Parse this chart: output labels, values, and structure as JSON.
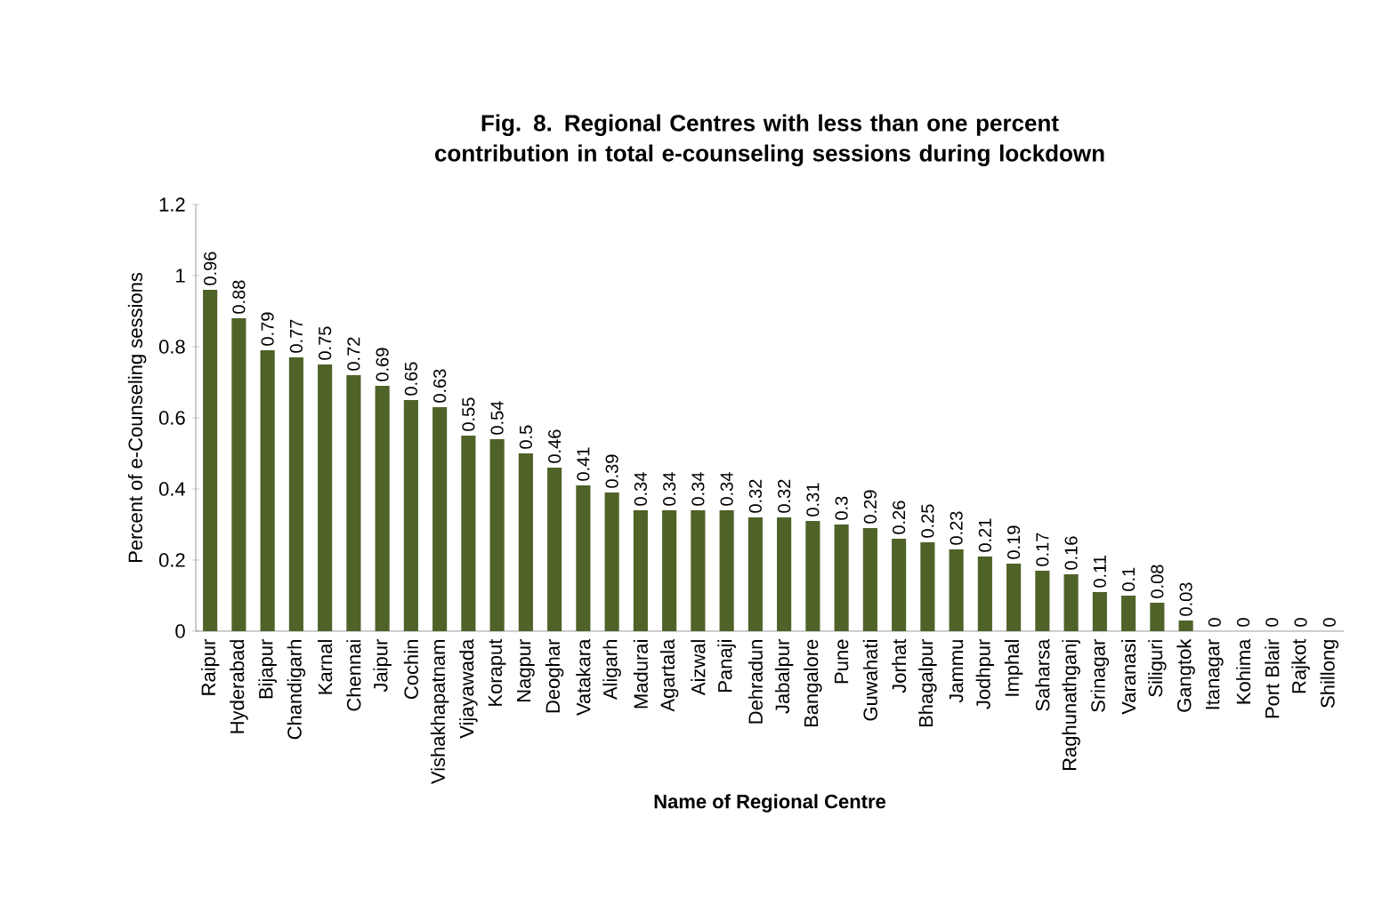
{
  "chart_data": {
    "type": "bar",
    "title": "Fig. 8. Regional  Centres with less than one percent contribution in total e-counseling sessions during lockdown",
    "xlabel": "Name of Regional Centre",
    "ylabel": "Percent of e-Counseling sessions",
    "categories": [
      "Raipur",
      "Hyderabad",
      "Bijapur",
      "Chandigarh",
      "Karnal",
      "Chennai",
      "Jaipur",
      "Cochin",
      "Vishakhapatnam",
      "Vijayawada",
      "Koraput",
      "Nagpur",
      "Deoghar",
      "Vatakara",
      "Aligarh",
      "Madurai",
      "Agartala",
      "Aizwal",
      "Panaji",
      "Dehradun",
      "Jabalpur",
      "Bangalore",
      "Pune",
      "Guwahati",
      "Jorhat",
      "Bhagalpur",
      "Jammu",
      "Jodhpur",
      "Imphal",
      "Saharsa",
      "Raghunathganj",
      "Srinagar",
      "Varanasi",
      "Siliguri",
      "Gangtok",
      "Itanagar",
      "Kohima",
      "Port Blair",
      "Rajkot",
      "Shillong"
    ],
    "values": [
      0.96,
      0.88,
      0.79,
      0.77,
      0.75,
      0.72,
      0.69,
      0.65,
      0.63,
      0.55,
      0.54,
      0.5,
      0.46,
      0.41,
      0.39,
      0.34,
      0.34,
      0.34,
      0.34,
      0.32,
      0.32,
      0.31,
      0.3,
      0.29,
      0.26,
      0.25,
      0.23,
      0.21,
      0.19,
      0.17,
      0.16,
      0.11,
      0.1,
      0.08,
      0.03,
      0,
      0,
      0,
      0,
      0
    ],
    "color": "#4f6228",
    "ylim": [
      0,
      1.2
    ],
    "yticks": [
      0,
      0.2,
      0.4,
      0.6,
      0.8,
      1,
      1.2
    ],
    "data_labels": true,
    "grid": false
  }
}
